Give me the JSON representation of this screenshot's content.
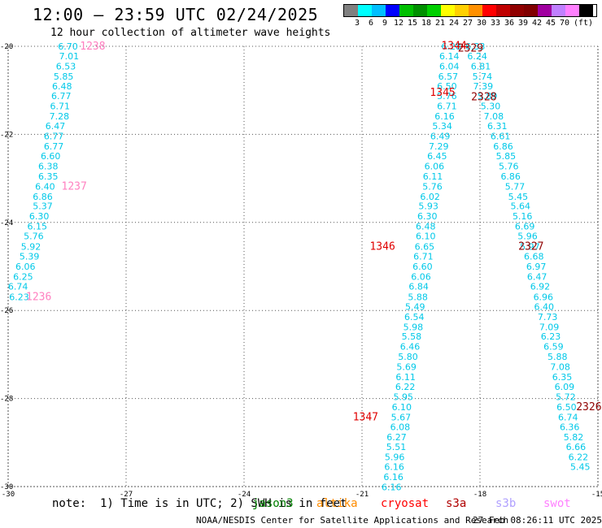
{
  "header": {
    "title": "12:00 – 23:59 UTC 02/24/2025",
    "subtitle": "12 hour collection of altimeter wave heights"
  },
  "legend": {
    "colors": [
      "#808080",
      "#00ffff",
      "#00bfff",
      "#0000ff",
      "#00c000",
      "#009000",
      "#00d000",
      "#ffff00",
      "#ffd000",
      "#ff9000",
      "#ff0000",
      "#c00000",
      "#900000",
      "#800000",
      "#a000a0",
      "#c080ff",
      "#ff80ff",
      "#000000"
    ],
    "labels": [
      "3",
      "6",
      "9",
      "12",
      "15",
      "18",
      "21",
      "24",
      "27",
      "30",
      "33",
      "36",
      "39",
      "42",
      "45",
      "70",
      "(ft)"
    ]
  },
  "note": "note:  1) Time is in UTC; 2) SWH is in feet",
  "satellites": [
    {
      "name": "jason3",
      "color": "#008000"
    },
    {
      "name": "altika",
      "color": "#ff8c00"
    },
    {
      "name": "cryosat",
      "color": "#ff0000"
    },
    {
      "name": "s3a",
      "color": "#b00000"
    },
    {
      "name": "s3b",
      "color": "#b0a0ff"
    },
    {
      "name": "swot",
      "color": "#ff80ff"
    }
  ],
  "footer": {
    "org": "NOAA/NESDIS Center for Satellite Applications and Research",
    "generated": "27 Feb 08:26:11 UTC 2025"
  },
  "chart_data": {
    "type": "scatter",
    "xlim": [
      -30,
      -15
    ],
    "ylim": [
      -30,
      -20
    ],
    "x_ticks": [
      "-30",
      "-27",
      "-24",
      "-21",
      "-18",
      "-15"
    ],
    "y_ticks": [
      "-20",
      "-22",
      "-24",
      "-26",
      "-28",
      "-30"
    ],
    "grid": true,
    "tracks": [
      {
        "color": "#00c8e8",
        "x": [
          -28.48,
          -28.45,
          -28.53,
          -28.59,
          -28.63,
          -28.65,
          -28.68,
          -28.7,
          -28.8,
          -28.84,
          -28.84,
          -28.92,
          -28.98,
          -28.98,
          -29.06,
          -29.12,
          -29.12,
          -29.21,
          -29.26,
          -29.35,
          -29.42,
          -29.46,
          -29.56,
          -29.62,
          -29.75
        ],
        "y": [
          -20.0,
          -20.22,
          -20.45,
          -20.68,
          -20.9,
          -21.13,
          -21.36,
          -21.59,
          -21.81,
          -22.04,
          -22.27,
          -22.49,
          -22.72,
          -22.95,
          -23.18,
          -23.41,
          -23.63,
          -23.86,
          -24.09,
          -24.31,
          -24.55,
          -24.77,
          -25.0,
          -25.23,
          -25.45
        ],
        "labels": [
          "6.70",
          "7.01",
          "6.53",
          "5.85",
          "6.48",
          "6.77",
          "6.71",
          "7.28",
          "6.47",
          "6.77",
          "6.77",
          "6.60",
          "6.38",
          "6.35",
          "6.40",
          "6.86",
          "5.37",
          "6.30",
          "6.15",
          "5.76",
          "5.92",
          "5.39",
          "6.06",
          "6.25",
          "6.74"
        ]
      },
      {
        "color": "#00c8e8",
        "x": [
          -29.72
        ],
        "y": [
          -25.69
        ],
        "labels": [
          "6.23"
        ]
      },
      {
        "color": "#00c8e8",
        "x": [
          -18.73,
          -18.78,
          -18.78,
          -18.81,
          -18.84,
          -18.84,
          -18.84,
          -18.9,
          -18.96,
          -19.01,
          -19.05,
          -19.09,
          -19.16,
          -19.2,
          -19.21,
          -19.27,
          -19.31,
          -19.34,
          -19.38,
          -19.38,
          -19.41,
          -19.44,
          -19.46,
          -19.5,
          -19.56,
          -19.58,
          -19.65,
          -19.67,
          -19.7,
          -19.74,
          -19.78,
          -19.83,
          -19.87,
          -19.89,
          -19.9,
          -19.95,
          -19.99,
          -20.01,
          -20.03,
          -20.12,
          -20.13,
          -20.17,
          -20.18,
          -20.2,
          -20.25
        ],
        "y": [
          -20.0,
          -20.22,
          -20.45,
          -20.68,
          -20.9,
          -21.13,
          -21.36,
          -21.59,
          -21.81,
          -22.04,
          -22.27,
          -22.49,
          -22.72,
          -22.95,
          -23.18,
          -23.41,
          -23.63,
          -23.86,
          -24.09,
          -24.31,
          -24.55,
          -24.77,
          -25.0,
          -25.23,
          -25.45,
          -25.69,
          -25.91,
          -26.14,
          -26.37,
          -26.59,
          -26.82,
          -27.05,
          -27.28,
          -27.51,
          -27.73,
          -27.96,
          -28.19,
          -28.42,
          -28.64,
          -28.87,
          -29.1,
          -29.33,
          -29.55,
          -29.78,
          -30.01
        ],
        "labels": [
          "6.28",
          "6.14",
          "6.04",
          "6.57",
          "6.50",
          "5.76",
          "6.71",
          "6.16",
          "5.34",
          "6.49",
          "7.29",
          "6.45",
          "6.06",
          "6.11",
          "5.76",
          "6.02",
          "5.93",
          "6.30",
          "6.48",
          "6.10",
          "6.65",
          "6.71",
          "6.60",
          "6.06",
          "6.84",
          "5.88",
          "5.49",
          "6.54",
          "5.98",
          "5.58",
          "6.46",
          "5.80",
          "5.69",
          "6.11",
          "6.22",
          "5.95",
          "6.10",
          "5.67",
          "6.08",
          "6.27",
          "5.51",
          "5.96",
          "6.16",
          "6.16",
          "6.16"
        ]
      },
      {
        "color": "#00c8e8",
        "x": [
          -18.12,
          -18.07,
          -17.98,
          -17.94,
          -17.92,
          -17.81,
          -17.73,
          -17.65,
          -17.56,
          -17.48,
          -17.41,
          -17.34,
          -17.27,
          -17.22,
          -17.11,
          -17.03,
          -16.97,
          -16.92,
          -16.86,
          -16.79,
          -16.73,
          -16.63,
          -16.57,
          -16.55,
          -16.47,
          -16.39,
          -16.37,
          -16.28,
          -16.24,
          -16.2,
          -16.13,
          -16.03,
          -15.96,
          -15.91,
          -15.85,
          -15.82,
          -15.8,
          -15.76,
          -15.72
        ],
        "y": [
          -20.0,
          -20.22,
          -20.45,
          -20.68,
          -20.9,
          -21.13,
          -21.36,
          -21.59,
          -21.81,
          -22.04,
          -22.27,
          -22.49,
          -22.72,
          -22.95,
          -23.18,
          -23.41,
          -23.63,
          -23.86,
          -24.09,
          -24.31,
          -24.55,
          -24.77,
          -25.0,
          -25.23,
          -25.45,
          -25.69,
          -25.91,
          -26.14,
          -26.37,
          -26.59,
          -26.82,
          -27.05,
          -27.28,
          -27.51,
          -27.73,
          -27.96,
          -28.19,
          -28.42,
          -28.64
        ],
        "labels": [
          "6.33",
          "6.24",
          "6.81",
          "5.74",
          "7.39",
          "5.89",
          "5.30",
          "7.08",
          "6.31",
          "6.61",
          "6.86",
          "5.85",
          "5.76",
          "6.86",
          "5.77",
          "5.45",
          "5.64",
          "5.16",
          "6.69",
          "5.96",
          "5.97",
          "6.68",
          "6.97",
          "6.47",
          "6.92",
          "6.96",
          "6.40",
          "7.73",
          "7.09",
          "6.23",
          "6.59",
          "5.88",
          "7.08",
          "6.35",
          "6.09",
          "5.72",
          "6.50",
          "6.74",
          "6.36"
        ]
      },
      {
        "color": "#00c8e8",
        "x": [
          -15.62,
          -15.56,
          -15.5
        ],
        "y": [
          -28.87,
          -29.1,
          -29.33
        ],
        "labels": [
          "5.82",
          "6.66",
          "6.22"
        ]
      },
      {
        "color": "#00c8e8",
        "x": [
          -15.45
        ],
        "y": [
          -29.55
        ],
        "labels": [
          "5.45"
        ]
      }
    ],
    "pass_labels": [
      {
        "text": "1238",
        "color": "#ff80c0",
        "x": -27.85,
        "y": -20.0
      },
      {
        "text": "1237",
        "color": "#ff80c0",
        "x": -28.32,
        "y": -23.18
      },
      {
        "text": "1236",
        "color": "#ff80c0",
        "x": -29.22,
        "y": -25.69
      },
      {
        "text": "1344",
        "color": "#e00000",
        "x": -18.66,
        "y": -19.99
      },
      {
        "text": "2329",
        "color": "#900000",
        "x": -18.24,
        "y": -20.05
      },
      {
        "text": "1345",
        "color": "#e00000",
        "x": -18.95,
        "y": -21.05
      },
      {
        "text": "2328",
        "color": "#900000",
        "x": -17.9,
        "y": -21.15
      },
      {
        "text": "1346",
        "color": "#e00000",
        "x": -20.48,
        "y": -24.55
      },
      {
        "text": "2327",
        "color": "#900000",
        "x": -16.7,
        "y": -24.55
      },
      {
        "text": "1347",
        "color": "#e00000",
        "x": -20.91,
        "y": -28.42
      },
      {
        "text": "2326",
        "color": "#900000",
        "x": -15.23,
        "y": -28.19
      }
    ]
  }
}
